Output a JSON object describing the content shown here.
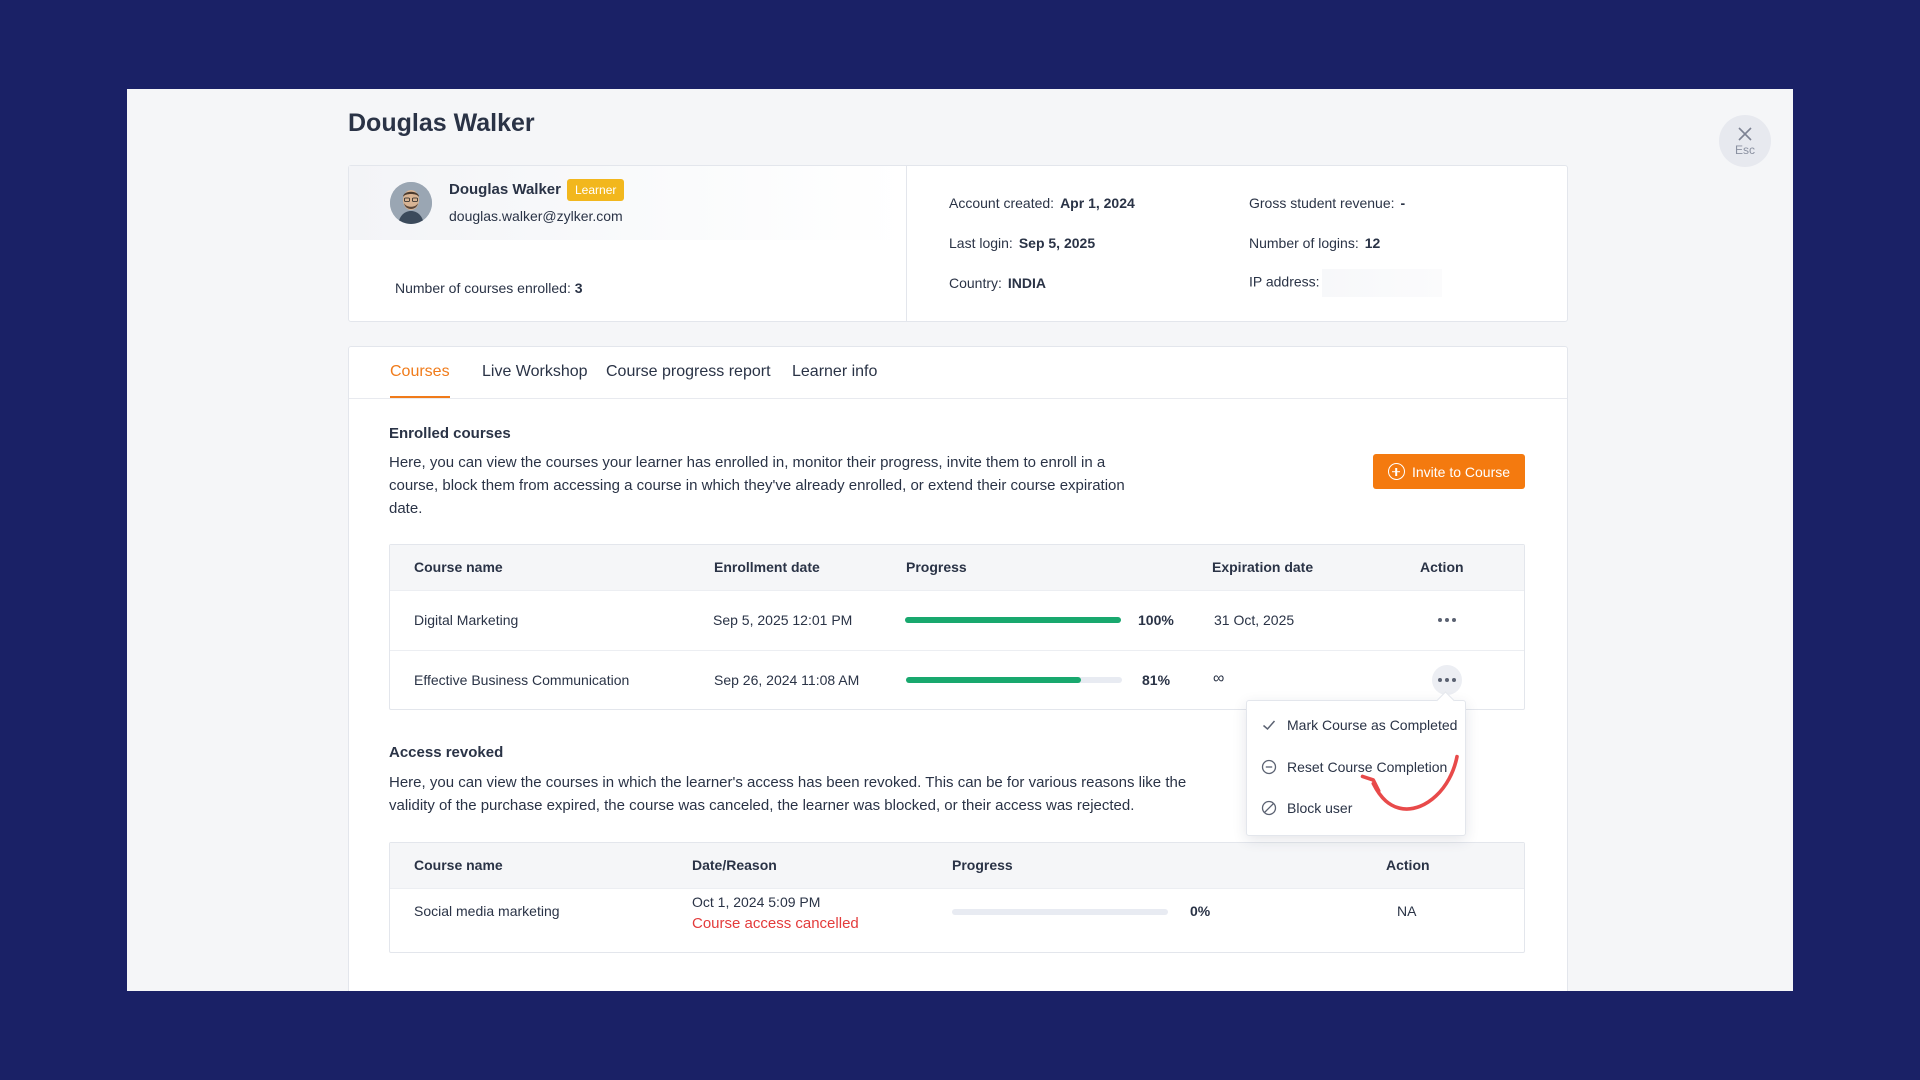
{
  "page": {
    "title": "Douglas Walker",
    "close_label": "Esc"
  },
  "profile": {
    "name": "Douglas Walker",
    "role": "Learner",
    "email": "douglas.walker@zylker.com",
    "courses_enrolled_label": "Number of courses enrolled:",
    "courses_enrolled_value": "3"
  },
  "stats": {
    "account_created_label": "Account created:",
    "account_created_value": "Apr 1, 2024",
    "last_login_label": "Last login:",
    "last_login_value": "Sep 5, 2025",
    "country_label": "Country:",
    "country_value": "INDIA",
    "revenue_label": "Gross student revenue:",
    "revenue_value": "-",
    "logins_label": "Number of logins:",
    "logins_value": "12",
    "ip_label": "IP address:"
  },
  "tabs": [
    {
      "label": "Courses",
      "active": true
    },
    {
      "label": "Live Workshop"
    },
    {
      "label": "Course progress report"
    },
    {
      "label": "Learner info"
    }
  ],
  "enrolled": {
    "title": "Enrolled courses",
    "description": "Here, you can view the courses your learner has enrolled in, monitor their progress, invite them to enroll in a course, block them from accessing a course in which they've already enrolled, or extend their course expiration date.",
    "invite_label": "Invite to Course",
    "columns": [
      "Course name",
      "Enrollment date",
      "Progress",
      "Expiration date",
      "Action"
    ],
    "rows": [
      {
        "course": "Digital Marketing",
        "enrolled": "Sep 5, 2025 12:01 PM",
        "progress": 100,
        "progress_label": "100%",
        "expiration": "31 Oct, 2025"
      },
      {
        "course": "Effective Business Communication",
        "enrolled": "Sep 26, 2024 11:08 AM",
        "progress": 81,
        "progress_label": "81%",
        "expiration": "∞"
      }
    ]
  },
  "action_menu": {
    "items": [
      {
        "label": "Mark Course as Completed",
        "icon": "check-icon"
      },
      {
        "label": "Reset Course Completion",
        "icon": "minus-circle-icon"
      },
      {
        "label": "Block user",
        "icon": "block-icon"
      }
    ]
  },
  "revoked": {
    "title": "Access revoked",
    "description": "Here, you can view the courses in which the learner's access has been revoked. This can be for various reasons like the validity of the purchase expired, the course was canceled, the learner was blocked, or their access was rejected.",
    "columns": [
      "Course name",
      "Date/Reason",
      "Progress",
      "Action"
    ],
    "rows": [
      {
        "course": "Social media marketing",
        "date": "Oct 1, 2024 5:09 PM",
        "reason": "Course access cancelled",
        "progress": 0,
        "progress_label": "0%",
        "action": "NA"
      }
    ]
  },
  "colors": {
    "background": "#1a2166",
    "accent": "#f07b1a",
    "progress": "#18a86e",
    "badge": "#f2b71d",
    "error": "#e33b3b"
  }
}
